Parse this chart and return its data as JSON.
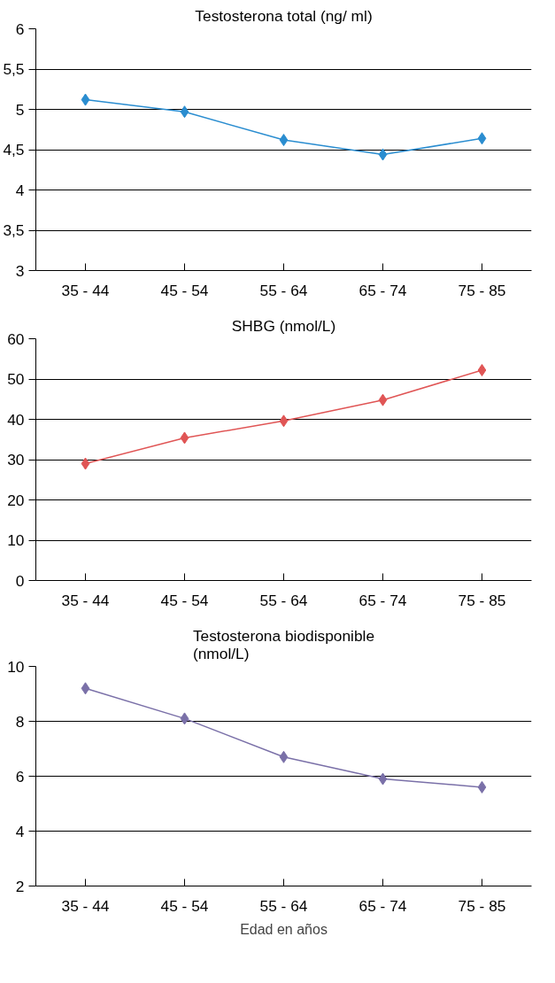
{
  "chart_data": [
    {
      "type": "line",
      "title": "Testosterona total (ng/ ml)",
      "categories": [
        "35 - 44",
        "45 - 54",
        "55 - 64",
        "65 - 74",
        "75 - 85"
      ],
      "series": [
        {
          "color": "#2a8dd0",
          "values": [
            5.12,
            4.97,
            4.62,
            4.44,
            4.64
          ]
        }
      ],
      "ylim": [
        3,
        6
      ],
      "yticks": [
        3,
        {
          "value": 3.5,
          "label": "3,5"
        },
        4,
        {
          "value": 4.5,
          "label": "4,5"
        },
        5,
        {
          "value": 5.5,
          "label": "5,5"
        },
        6
      ],
      "grid": "y",
      "marker": "diamond"
    },
    {
      "type": "line",
      "title": "SHBG (nmol/L)",
      "categories": [
        "35 - 44",
        "45 - 54",
        "55 - 64",
        "65 - 74",
        "75 - 85"
      ],
      "series": [
        {
          "color": "#e05555",
          "values": [
            29,
            35.4,
            39.6,
            44.8,
            52.2
          ]
        }
      ],
      "ylim": [
        0,
        60
      ],
      "yticks": [
        0,
        10,
        20,
        30,
        40,
        50,
        60
      ],
      "grid": "y",
      "marker": "diamond"
    },
    {
      "type": "line",
      "title": "Testosterona biodisponible\n(nmol/L)",
      "xlabel": "Edad en años",
      "categories": [
        "35 - 44",
        "45 - 54",
        "55 - 64",
        "65 - 74",
        "75 - 85"
      ],
      "series": [
        {
          "color": "#7a70a8",
          "values": [
            9.2,
            8.1,
            6.7,
            5.9,
            5.6
          ]
        }
      ],
      "ylim": [
        2,
        10
      ],
      "yticks": [
        2,
        4,
        6,
        8,
        10
      ],
      "grid": "y",
      "marker": "diamond"
    }
  ]
}
